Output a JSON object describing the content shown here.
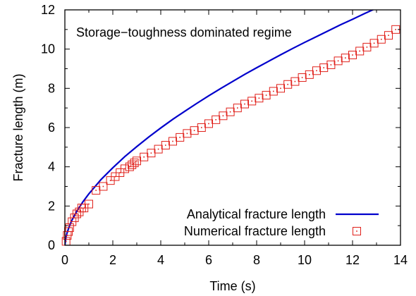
{
  "chart_data": {
    "type": "line",
    "title": "",
    "annotation": "Storage−toughness dominated regime",
    "xlabel": "Time (s)",
    "ylabel": "Fracture length (m)",
    "xlim": [
      0,
      14
    ],
    "ylim": [
      0,
      12
    ],
    "xticks": [
      0,
      2,
      4,
      6,
      8,
      10,
      12,
      14
    ],
    "yticks": [
      0,
      2,
      4,
      6,
      8,
      10,
      12
    ],
    "grid": false,
    "legend_position": "bottom-right",
    "series": [
      {
        "name": "Analytical fracture length",
        "kind": "line",
        "color": "#0000cc",
        "x": [
          0,
          0.05,
          0.1,
          0.2,
          0.3,
          0.5,
          0.75,
          1,
          1.5,
          2,
          2.5,
          3,
          3.5,
          4,
          4.5,
          5,
          5.5,
          6,
          6.5,
          7,
          7.5,
          8,
          8.5,
          9,
          9.5,
          10,
          10.5,
          11,
          11.5,
          12,
          12.5,
          13,
          13.5,
          14
        ],
        "y": [
          0,
          0.44,
          0.67,
          1.01,
          1.29,
          1.74,
          2.21,
          2.62,
          3.34,
          3.95,
          4.52,
          5.03,
          5.52,
          5.98,
          6.42,
          6.83,
          7.23,
          7.62,
          7.99,
          8.35,
          8.71,
          9.05,
          9.38,
          9.71,
          10.03,
          10.34,
          10.64,
          10.94,
          11.24,
          11.52,
          11.81,
          12.09,
          12.36,
          12.63
        ]
      },
      {
        "name": "Numerical fracture length",
        "kind": "markers",
        "marker": "square-dot",
        "color": "#e0201a",
        "x": [
          0.05,
          0.1,
          0.15,
          0.2,
          0.3,
          0.4,
          0.5,
          0.6,
          0.7,
          0.8,
          1.0,
          1.3,
          1.6,
          1.9,
          2.1,
          2.3,
          2.5,
          2.7,
          2.8,
          2.9,
          3.0,
          3.3,
          3.6,
          3.9,
          4.2,
          4.5,
          4.8,
          5.1,
          5.4,
          5.7,
          6.0,
          6.3,
          6.6,
          6.9,
          7.2,
          7.5,
          7.8,
          8.1,
          8.4,
          8.7,
          9.0,
          9.3,
          9.6,
          9.9,
          10.2,
          10.5,
          10.8,
          11.1,
          11.4,
          11.7,
          12.0,
          12.3,
          12.6,
          12.9,
          13.2,
          13.5,
          13.8
        ],
        "y": [
          0.2,
          0.5,
          0.7,
          0.9,
          1.2,
          1.4,
          1.6,
          1.7,
          1.9,
          1.9,
          2.1,
          2.8,
          3.0,
          3.3,
          3.5,
          3.7,
          3.9,
          4.0,
          4.1,
          4.2,
          4.3,
          4.5,
          4.7,
          4.9,
          5.1,
          5.3,
          5.5,
          5.7,
          5.85,
          6.0,
          6.2,
          6.4,
          6.6,
          6.8,
          7.0,
          7.2,
          7.35,
          7.5,
          7.65,
          7.85,
          8.0,
          8.2,
          8.35,
          8.55,
          8.7,
          8.9,
          9.05,
          9.2,
          9.4,
          9.55,
          9.7,
          9.9,
          10.1,
          10.3,
          10.5,
          10.7,
          11.0
        ]
      }
    ]
  }
}
